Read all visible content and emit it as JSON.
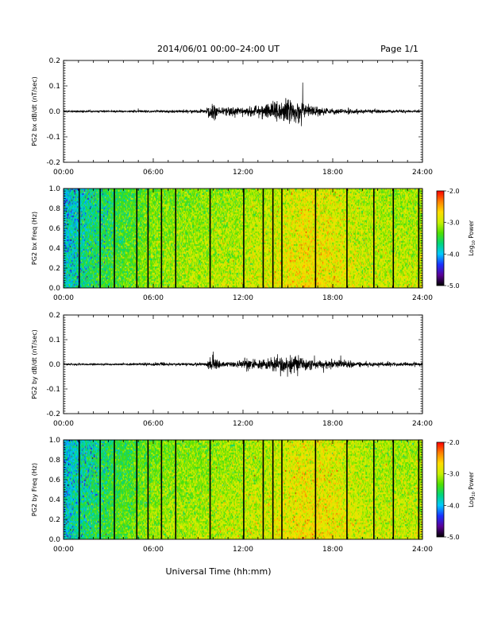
{
  "header": {
    "title": "2014/06/01  00:00–24:00 UT",
    "page": "Page 1/1"
  },
  "footer": {
    "xlabel": "Universal Time (hh:mm)"
  },
  "colors": {
    "trace": "#000000",
    "gap": "#000000",
    "colorbar": [
      "#000000",
      "#5a0096",
      "#1a30ff",
      "#00c8ff",
      "#00d67a",
      "#4fe000",
      "#c8f000",
      "#ffdc00",
      "#ff8000",
      "#ff0000"
    ]
  },
  "colorbar": {
    "label_main": "Log",
    "label_sub": "10",
    "label_end": " Power",
    "range": [
      -5.0,
      -2.0
    ],
    "ticks": [
      "-2.0",
      "-3.0",
      "-4.0",
      "-5.0"
    ]
  },
  "chart_data": [
    {
      "type": "line",
      "ylabel": "PG2 bx dB/dt (nT/sec)",
      "xlim": [
        0,
        24
      ],
      "ylim": [
        -0.2,
        0.2
      ],
      "x_ticks": [
        "00:00",
        "06:00",
        "12:00",
        "18:00",
        "24:00"
      ],
      "y_ticks": [
        "0.2",
        "0.1",
        "0.0",
        "-0.1",
        "-0.2"
      ],
      "envelope": {
        "x_hours": [
          0,
          2,
          4,
          6,
          8,
          9.5,
          10.0,
          10.5,
          11.0,
          12.0,
          13.0,
          14.0,
          14.5,
          15.0,
          15.5,
          16.0,
          16.5,
          17.0,
          18.0,
          20.0,
          22.0,
          24.0
        ],
        "amplitude": [
          0.004,
          0.004,
          0.004,
          0.005,
          0.006,
          0.008,
          0.04,
          0.012,
          0.025,
          0.015,
          0.028,
          0.035,
          0.045,
          0.05,
          0.045,
          0.035,
          0.025,
          0.02,
          0.012,
          0.008,
          0.006,
          0.006
        ]
      }
    },
    {
      "type": "heatmap",
      "ylabel": "PG2 bx Freq (Hz)",
      "xlim": [
        0,
        24
      ],
      "ylim": [
        0.0,
        1.0
      ],
      "x_ticks": [
        "00:00",
        "06:00",
        "12:00",
        "18:00",
        "24:00"
      ],
      "y_ticks": [
        "1.0",
        "0.8",
        "0.6",
        "0.4",
        "0.2",
        "0.0"
      ],
      "color_scale": "log10 power",
      "zlim": [
        -5.0,
        -2.0
      ],
      "gap_lines_hours": [
        1.05,
        2.45,
        3.4,
        4.9,
        5.65,
        6.55,
        7.5,
        9.8,
        12.05,
        13.35,
        14.0,
        14.6,
        16.85,
        18.95,
        20.75,
        22.05,
        23.75
      ],
      "mean_log_power_by_hour": {
        "x_hours": [
          0,
          2,
          4,
          6,
          8,
          10,
          12,
          14,
          16,
          18,
          20,
          22,
          24
        ],
        "value": [
          -3.9,
          -3.6,
          -3.4,
          -3.2,
          -3.15,
          -3.1,
          -3.05,
          -2.95,
          -2.8,
          -2.85,
          -3.0,
          -3.05,
          -3.05
        ]
      }
    },
    {
      "type": "line",
      "ylabel": "PG2 by dB/dt (nT/sec)",
      "xlim": [
        0,
        24
      ],
      "ylim": [
        -0.2,
        0.2
      ],
      "x_ticks": [
        "00:00",
        "06:00",
        "12:00",
        "18:00",
        "24:00"
      ],
      "y_ticks": [
        "0.2",
        "0.1",
        "0.0",
        "-0.1",
        "-0.2"
      ],
      "envelope": {
        "x_hours": [
          0,
          2,
          4,
          6,
          8,
          9.5,
          10.0,
          10.5,
          11.0,
          12.0,
          12.5,
          13.0,
          14.0,
          14.5,
          15.0,
          15.5,
          16.0,
          16.5,
          17.0,
          18.0,
          20.0,
          22.0,
          24.0
        ],
        "amplitude": [
          0.004,
          0.004,
          0.004,
          0.006,
          0.006,
          0.008,
          0.04,
          0.012,
          0.012,
          0.015,
          0.03,
          0.018,
          0.025,
          0.04,
          0.045,
          0.045,
          0.035,
          0.022,
          0.015,
          0.018,
          0.01,
          0.008,
          0.008
        ]
      }
    },
    {
      "type": "heatmap",
      "ylabel": "PG2 by Freq (Hz)",
      "xlim": [
        0,
        24
      ],
      "ylim": [
        0.0,
        1.0
      ],
      "x_ticks": [
        "00:00",
        "06:00",
        "12:00",
        "18:00",
        "24:00"
      ],
      "y_ticks": [
        "1.0",
        "0.8",
        "0.6",
        "0.4",
        "0.2",
        "0.0"
      ],
      "color_scale": "log10 power",
      "zlim": [
        -5.0,
        -2.0
      ],
      "gap_lines_hours": [
        1.05,
        2.45,
        3.4,
        4.9,
        5.65,
        6.55,
        7.5,
        9.8,
        12.05,
        13.35,
        14.0,
        14.6,
        16.85,
        18.95,
        20.75,
        22.05,
        23.75
      ],
      "mean_log_power_by_hour": {
        "x_hours": [
          0,
          2,
          4,
          6,
          8,
          10,
          12,
          14,
          16,
          18,
          20,
          22,
          24
        ],
        "value": [
          -3.9,
          -3.6,
          -3.4,
          -3.2,
          -3.15,
          -3.1,
          -3.05,
          -2.95,
          -2.8,
          -2.85,
          -3.0,
          -3.05,
          -3.05
        ]
      }
    }
  ]
}
